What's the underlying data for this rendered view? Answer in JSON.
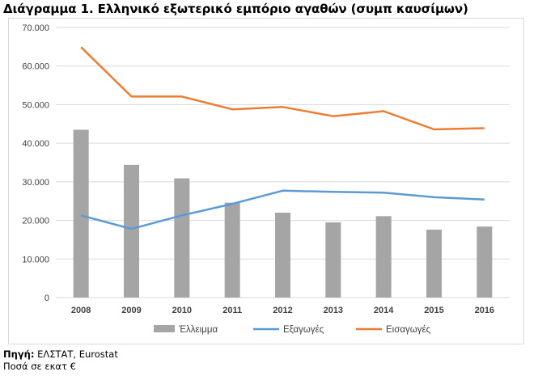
{
  "title": "Διάγραμμα 1. Ελληνικό εξωτερικό εμπόριο αγαθών (συμπ καυσίμων)",
  "footer": {
    "source_label": "Πηγή:",
    "source_value": " ΕΛΣΤΑΤ, Eurostat",
    "note": "Ποσά σε εκατ €"
  },
  "colors": {
    "bars": "#a5a5a5",
    "exports": "#5b9bd5",
    "imports": "#ed7d31",
    "grid": "#d9d9d9"
  },
  "chart_data": {
    "type": "bar",
    "title": "Διάγραμμα 1. Ελληνικό εξωτερικό εμπόριο αγαθών (συμπ καυσίμων)",
    "categories": [
      "2008",
      "2009",
      "2010",
      "2011",
      "2012",
      "2013",
      "2014",
      "2015",
      "2016"
    ],
    "ylim": [
      0,
      70000
    ],
    "yticks": [
      "0",
      "10.000",
      "20.000",
      "30.000",
      "40.000",
      "50.000",
      "60.000",
      "70.000"
    ],
    "grid": true,
    "legend": "bottom",
    "series": [
      {
        "name": "Έλλειμμα",
        "type": "bar",
        "values": [
          43500,
          34400,
          30900,
          24600,
          22000,
          19500,
          21100,
          17600,
          18400
        ]
      },
      {
        "name": "Εξαγωγές",
        "type": "line",
        "values": [
          21300,
          17800,
          21300,
          24300,
          27700,
          27400,
          27200,
          26000,
          25400
        ]
      },
      {
        "name": "Εισαγωγές",
        "type": "line",
        "values": [
          64900,
          52100,
          52100,
          48800,
          49400,
          47000,
          48300,
          43600,
          43900
        ]
      }
    ]
  }
}
